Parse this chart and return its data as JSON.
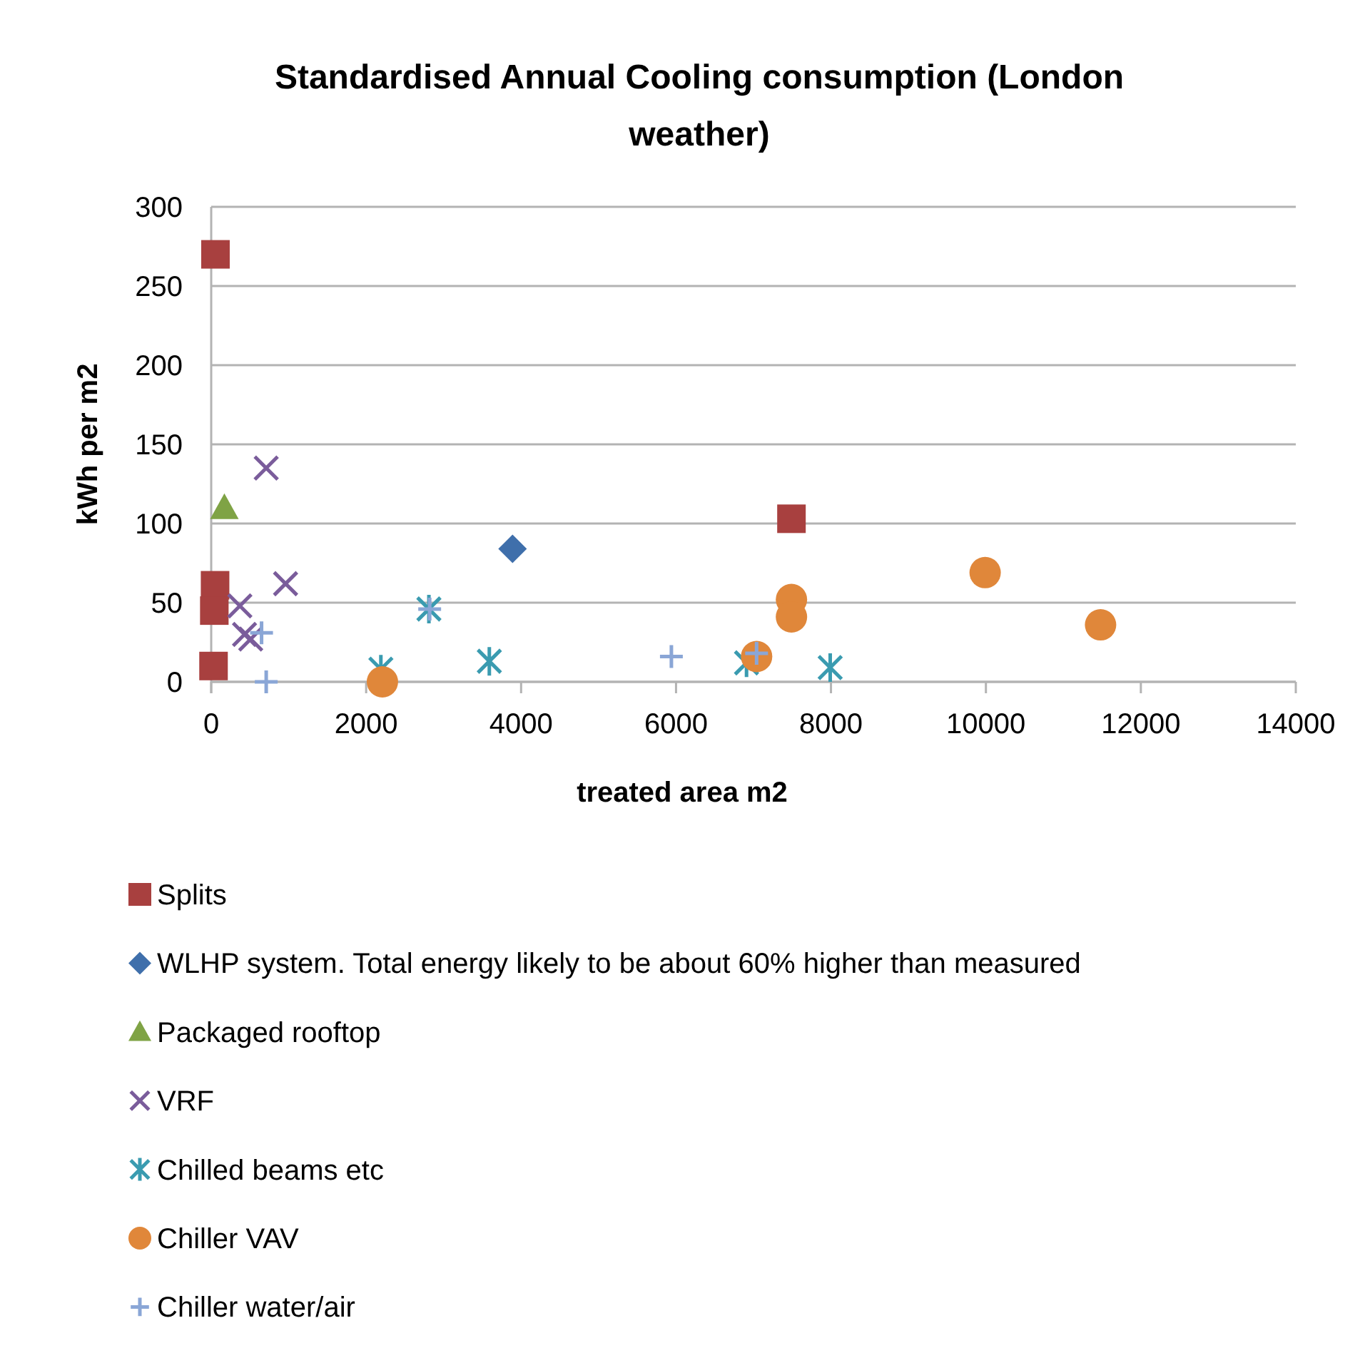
{
  "chart_data": {
    "type": "scatter",
    "title": "Standardised Annual Cooling consumption (London weather)",
    "xlabel": "treated area m2",
    "ylabel": "kWh per m2",
    "xlim": [
      0,
      14000
    ],
    "xticks": [
      0,
      2000,
      4000,
      6000,
      8000,
      10000,
      12000,
      14000
    ],
    "ylim": [
      0,
      300
    ],
    "yticks": [
      0,
      50,
      100,
      150,
      200,
      250,
      300
    ],
    "grid": "y",
    "legend": "bottom",
    "series": [
      {
        "name": "Splits",
        "color": "#a8403f",
        "marker": "square",
        "x": [
          55,
          50,
          40,
          30,
          7490
        ],
        "values": [
          270,
          61,
          45,
          10,
          103
        ]
      },
      {
        "name": "WLHP system. Total energy likely to be about 60% higher than measured",
        "color": "#3f6fab",
        "marker": "diamond",
        "x": [
          3890
        ],
        "values": [
          84
        ]
      },
      {
        "name": "Packaged rooftop",
        "color": "#7fa345",
        "marker": "triangle",
        "x": [
          170
        ],
        "values": [
          110
        ]
      },
      {
        "name": "VRF",
        "color": "#7a5c9b",
        "marker": "cross",
        "x": [
          710,
          960,
          370,
          430,
          510
        ],
        "values": [
          135,
          62,
          48,
          30,
          27
        ]
      },
      {
        "name": "Chilled beams etc",
        "color": "#3a9bb0",
        "x": [
          2810,
          3590,
          2190,
          6910,
          7990
        ],
        "values": [
          46,
          13,
          8,
          12,
          9
        ]
      },
      {
        "name": "Chiller VAV",
        "color": "#e0873a",
        "marker": "circle",
        "x": [
          2210,
          7040,
          7490,
          7490,
          9990,
          11480
        ],
        "values": [
          0,
          16,
          52,
          41,
          69,
          36
        ]
      },
      {
        "name": "Chiller water/air",
        "color": "#8aa6d6",
        "marker": "plus",
        "x": [
          710,
          650,
          2820,
          5940,
          7040
        ],
        "values": [
          0,
          31,
          46,
          16,
          18
        ]
      }
    ]
  }
}
